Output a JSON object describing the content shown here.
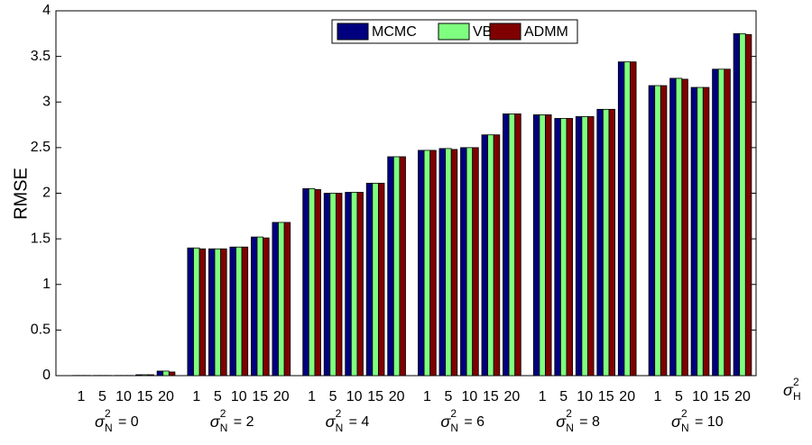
{
  "chart_data": {
    "type": "bar",
    "y_label": "RMSE",
    "x_label": {
      "symbol": "σ",
      "sup": "2",
      "sub": "H"
    },
    "categories": [
      "1",
      "5",
      "10",
      "15",
      "20",
      "1",
      "5",
      "10",
      "15",
      "20",
      "1",
      "5",
      "10",
      "15",
      "20",
      "1",
      "5",
      "10",
      "15",
      "20",
      "1",
      "5",
      "10",
      "15",
      "20",
      "1",
      "5",
      "10",
      "15",
      "20"
    ],
    "group_labels": [
      {
        "symbol": "σ",
        "sup": "2",
        "sub": "N",
        "text": "= 0"
      },
      {
        "symbol": "σ",
        "sup": "2",
        "sub": "N",
        "text": "= 2"
      },
      {
        "symbol": "σ",
        "sup": "2",
        "sub": "N",
        "text": "= 4"
      },
      {
        "symbol": "σ",
        "sup": "2",
        "sub": "N",
        "text": "= 6"
      },
      {
        "symbol": "σ",
        "sup": "2",
        "sub": "N",
        "text": "= 8"
      },
      {
        "symbol": "σ",
        "sup": "2",
        "sub": "N",
        "text": "= 10"
      }
    ],
    "series": [
      {
        "name": "MCMC",
        "color": "#00007f",
        "values": [
          0.002,
          0.002,
          0.002,
          0.01,
          0.05,
          1.4,
          1.39,
          1.41,
          1.52,
          1.68,
          2.05,
          2.0,
          2.01,
          2.11,
          2.4,
          2.47,
          2.49,
          2.5,
          2.64,
          2.87,
          2.86,
          2.82,
          2.84,
          2.92,
          3.44,
          3.18,
          3.26,
          3.16,
          3.36,
          3.75
        ]
      },
      {
        "name": "VB",
        "color": "#7fff7f",
        "values": [
          0.002,
          0.002,
          0.002,
          0.01,
          0.05,
          1.4,
          1.39,
          1.41,
          1.52,
          1.68,
          2.05,
          2.0,
          2.01,
          2.11,
          2.4,
          2.47,
          2.49,
          2.5,
          2.64,
          2.87,
          2.86,
          2.82,
          2.84,
          2.92,
          3.44,
          3.18,
          3.26,
          3.16,
          3.36,
          3.75
        ]
      },
      {
        "name": "ADMM",
        "color": "#7f0000",
        "values": [
          0.002,
          0.002,
          0.002,
          0.01,
          0.04,
          1.39,
          1.39,
          1.41,
          1.51,
          1.68,
          2.04,
          2.0,
          2.01,
          2.11,
          2.4,
          2.47,
          2.48,
          2.5,
          2.64,
          2.87,
          2.86,
          2.82,
          2.84,
          2.92,
          3.44,
          3.18,
          3.25,
          3.16,
          3.36,
          3.74
        ]
      }
    ],
    "ylim": [
      0,
      4
    ],
    "yticks": [
      0,
      0.5,
      1,
      1.5,
      2,
      2.5,
      3,
      3.5,
      4
    ],
    "grid": false,
    "legend": "top"
  }
}
